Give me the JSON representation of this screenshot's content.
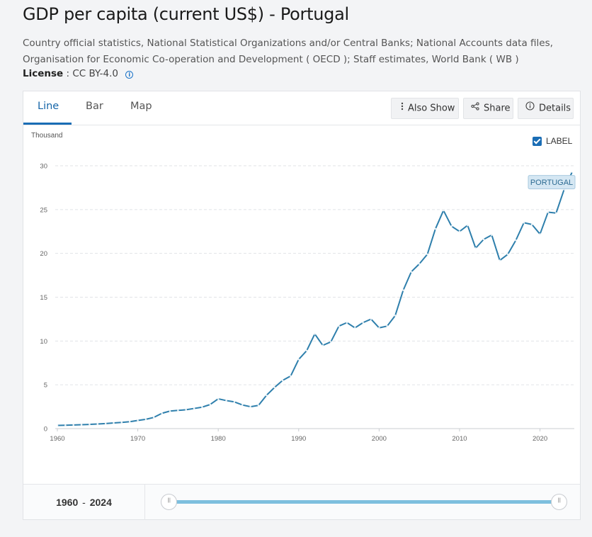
{
  "header": {
    "title": "GDP per capita (current US$) - Portugal",
    "source": "Country official statistics, National Statistical Organizations and/or Central Banks; National Accounts data files, Organisation for Economic Co-operation and Development ( OECD ); Staff estimates, World Bank ( WB )",
    "license_label": "License",
    "license_value": ": CC BY-4.0"
  },
  "tabs": [
    {
      "label": "Line",
      "active": true
    },
    {
      "label": "Bar",
      "active": false
    },
    {
      "label": "Map",
      "active": false
    }
  ],
  "toolbar": {
    "also_show": "Also Show",
    "share": "Share",
    "details": "Details"
  },
  "chart_controls": {
    "label_toggle": "LABEL",
    "label_checked": true
  },
  "range": {
    "start": "1960",
    "separator": "-",
    "end": "2024"
  },
  "colors": {
    "line": "#2e7fac",
    "accent": "#1a6db5",
    "slider": "#7ebfde"
  },
  "chart_data": {
    "type": "line",
    "unit_label": "Thousand",
    "series_label": "PORTUGAL",
    "xlim": [
      1960,
      2024
    ],
    "ylim": [
      0,
      30
    ],
    "xticks": [
      1960,
      1970,
      1980,
      1990,
      2000,
      2010,
      2020
    ],
    "yticks": [
      0,
      5,
      10,
      15,
      20,
      25,
      30
    ],
    "grid": true,
    "x": [
      1960,
      1961,
      1962,
      1963,
      1964,
      1965,
      1966,
      1967,
      1968,
      1969,
      1970,
      1971,
      1972,
      1973,
      1974,
      1975,
      1976,
      1977,
      1978,
      1979,
      1980,
      1981,
      1982,
      1983,
      1984,
      1985,
      1986,
      1987,
      1988,
      1989,
      1990,
      1991,
      1992,
      1993,
      1994,
      1995,
      1996,
      1997,
      1998,
      1999,
      2000,
      2001,
      2002,
      2003,
      2004,
      2005,
      2006,
      2007,
      2008,
      2009,
      2010,
      2011,
      2012,
      2013,
      2014,
      2015,
      2016,
      2017,
      2018,
      2019,
      2020,
      2021,
      2022,
      2023,
      2024
    ],
    "series": [
      {
        "name": "PORTUGAL",
        "values": [
          0.36,
          0.38,
          0.41,
          0.44,
          0.48,
          0.53,
          0.58,
          0.65,
          0.71,
          0.79,
          0.93,
          1.06,
          1.28,
          1.75,
          2.0,
          2.08,
          2.15,
          2.3,
          2.45,
          2.75,
          3.4,
          3.2,
          3.05,
          2.7,
          2.5,
          2.65,
          3.8,
          4.7,
          5.5,
          6.0,
          7.9,
          8.9,
          10.8,
          9.5,
          9.9,
          11.7,
          12.1,
          11.5,
          12.1,
          12.5,
          11.5,
          11.7,
          12.9,
          15.8,
          17.9,
          18.8,
          19.9,
          22.8,
          24.9,
          23.1,
          22.5,
          23.2,
          20.6,
          21.6,
          22.1,
          19.2,
          19.9,
          21.5,
          23.5,
          23.3,
          22.2,
          24.7,
          24.6,
          27.3,
          29.3
        ]
      }
    ]
  }
}
